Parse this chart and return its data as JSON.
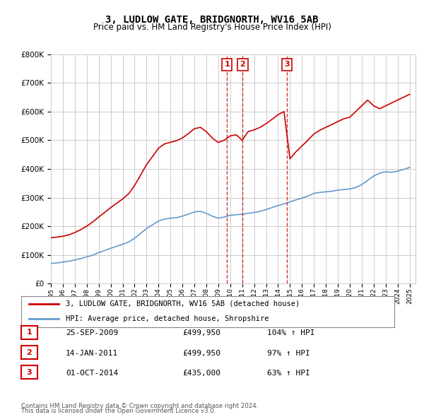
{
  "title": "3, LUDLOW GATE, BRIDGNORTH, WV16 5AB",
  "subtitle": "Price paid vs. HM Land Registry's House Price Index (HPI)",
  "legend_line1": "3, LUDLOW GATE, BRIDGNORTH, WV16 5AB (detached house)",
  "legend_line2": "HPI: Average price, detached house, Shropshire",
  "transactions": [
    {
      "num": 1,
      "date": "25-SEP-2009",
      "price": 499950,
      "pct": "104%",
      "dir": "↑",
      "year": 2009.73
    },
    {
      "num": 2,
      "date": "14-JAN-2011",
      "price": 499950,
      "pct": "97%",
      "dir": "↑",
      "year": 2011.04
    },
    {
      "num": 3,
      "date": "01-OCT-2014",
      "price": 435000,
      "pct": "63%",
      "dir": "↑",
      "year": 2014.75
    }
  ],
  "footer1": "Contains HM Land Registry data © Crown copyright and database right 2024.",
  "footer2": "This data is licensed under the Open Government Licence v3.0.",
  "red_color": "#cc0000",
  "blue_color": "#6699cc",
  "bg_color": "#ffffff",
  "grid_color": "#cccccc",
  "ylim": [
    0,
    800000
  ],
  "xlim_start": 1995.0,
  "xlim_end": 2025.5,
  "hpi_line": {
    "years": [
      1995.0,
      1995.5,
      1996.0,
      1996.5,
      1997.0,
      1997.5,
      1998.0,
      1998.5,
      1999.0,
      1999.5,
      2000.0,
      2000.5,
      2001.0,
      2001.5,
      2002.0,
      2002.5,
      2003.0,
      2003.5,
      2004.0,
      2004.5,
      2005.0,
      2005.5,
      2006.0,
      2006.5,
      2007.0,
      2007.5,
      2008.0,
      2008.5,
      2009.0,
      2009.5,
      2010.0,
      2010.5,
      2011.0,
      2011.5,
      2012.0,
      2012.5,
      2013.0,
      2013.5,
      2014.0,
      2014.5,
      2015.0,
      2015.5,
      2016.0,
      2016.5,
      2017.0,
      2017.5,
      2018.0,
      2018.5,
      2019.0,
      2019.5,
      2020.0,
      2020.5,
      2021.0,
      2021.5,
      2022.0,
      2022.5,
      2023.0,
      2023.5,
      2024.0,
      2024.5,
      2025.0
    ],
    "values": [
      70000,
      72000,
      75000,
      78000,
      82000,
      87000,
      93000,
      99000,
      108000,
      115000,
      123000,
      130000,
      137000,
      145000,
      158000,
      175000,
      192000,
      205000,
      218000,
      225000,
      228000,
      230000,
      235000,
      242000,
      250000,
      252000,
      245000,
      235000,
      228000,
      232000,
      238000,
      240000,
      242000,
      245000,
      248000,
      252000,
      258000,
      265000,
      272000,
      278000,
      285000,
      292000,
      298000,
      305000,
      315000,
      318000,
      320000,
      322000,
      326000,
      328000,
      330000,
      335000,
      345000,
      360000,
      375000,
      385000,
      390000,
      388000,
      392000,
      398000,
      405000
    ]
  },
  "price_line": {
    "years": [
      1995.0,
      1995.5,
      1996.0,
      1996.5,
      1997.0,
      1997.5,
      1998.0,
      1998.5,
      1999.0,
      1999.5,
      2000.0,
      2000.5,
      2001.0,
      2001.5,
      2002.0,
      2002.5,
      2003.0,
      2003.5,
      2004.0,
      2004.5,
      2005.0,
      2005.5,
      2006.0,
      2006.5,
      2007.0,
      2007.5,
      2008.0,
      2008.5,
      2009.0,
      2009.5,
      2010.0,
      2010.5,
      2011.0,
      2011.5,
      2012.0,
      2012.5,
      2013.0,
      2013.5,
      2014.0,
      2014.5,
      2015.0,
      2015.5,
      2016.0,
      2016.5,
      2017.0,
      2017.5,
      2018.0,
      2018.5,
      2019.0,
      2019.5,
      2020.0,
      2020.5,
      2021.0,
      2021.5,
      2022.0,
      2022.5,
      2023.0,
      2023.5,
      2024.0,
      2024.5,
      2025.0
    ],
    "values": [
      160000,
      162000,
      165000,
      170000,
      178000,
      188000,
      200000,
      215000,
      232000,
      248000,
      265000,
      280000,
      295000,
      313000,
      342000,
      378000,
      415000,
      443000,
      472000,
      487000,
      493000,
      498000,
      508000,
      523000,
      540000,
      545000,
      530000,
      508000,
      492000,
      499950,
      515000,
      519000,
      499950,
      530000,
      536000,
      545000,
      558000,
      573000,
      589000,
      600000,
      435000,
      460000,
      480000,
      500000,
      522000,
      535000,
      545000,
      555000,
      565000,
      575000,
      580000,
      600000,
      620000,
      640000,
      620000,
      610000,
      620000,
      630000,
      640000,
      650000,
      660000
    ]
  }
}
